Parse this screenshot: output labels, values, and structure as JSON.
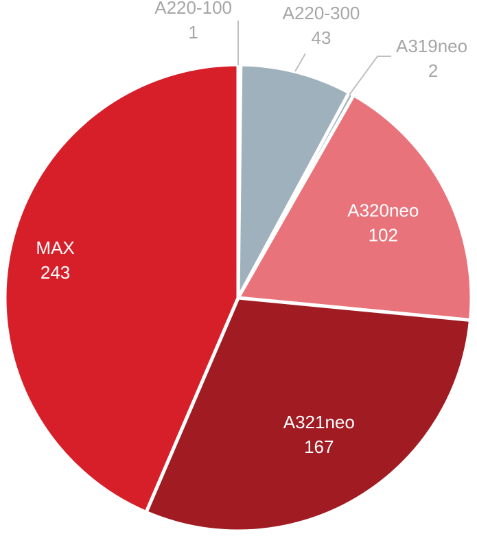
{
  "chart_data": {
    "type": "pie",
    "title": "",
    "categories": [
      "A220-100",
      "A220-300",
      "A319neo",
      "A320neo",
      "A321neo",
      "MAX"
    ],
    "values": [
      1,
      43,
      2,
      102,
      167,
      243
    ],
    "colors": [
      "#9fb1bc",
      "#9fb1bc",
      "#9fb1bc",
      "#e9737b",
      "#a01b22",
      "#d71f29"
    ],
    "label_colors": [
      "#a6a6a6",
      "#a6a6a6",
      "#a6a6a6",
      "#ffffff",
      "#ffffff",
      "#ffffff"
    ],
    "label_placement": [
      "outside",
      "outside",
      "outside",
      "inside",
      "inside",
      "inside"
    ],
    "start_angle_deg": 0,
    "direction": "clockwise",
    "legend": "none"
  }
}
